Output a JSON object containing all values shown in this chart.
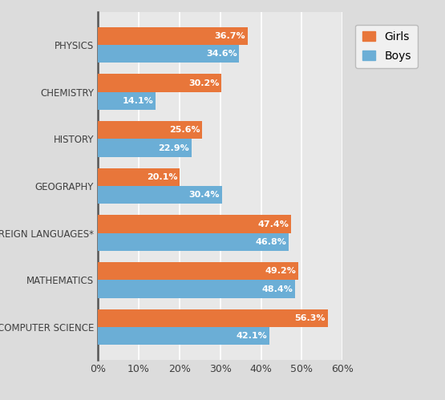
{
  "categories": [
    "COMPUTER SCIENCE",
    "MATHEMATICS",
    "FOREIGN LANGUAGES*",
    "GEOGRAPHY",
    "HISTORY",
    "CHEMISTRY",
    "PHYSICS"
  ],
  "girls": [
    56.3,
    49.2,
    47.4,
    20.1,
    25.6,
    30.2,
    36.7
  ],
  "boys": [
    42.1,
    48.4,
    46.8,
    30.4,
    22.9,
    14.1,
    34.6
  ],
  "girls_color": "#E8763A",
  "boys_color": "#6BAED6",
  "bar_height": 0.38,
  "xlim": [
    0,
    60
  ],
  "xticks": [
    0,
    10,
    20,
    30,
    40,
    50,
    60
  ],
  "xtick_labels": [
    "0%",
    "10%",
    "20%",
    "30%",
    "40%",
    "50%",
    "60%"
  ],
  "label_fontsize": 8.5,
  "tick_fontsize": 9,
  "legend_labels": [
    "Girls",
    "Boys"
  ],
  "background_color": "#DCDCDC",
  "plot_bg_color": "#E8E8E8",
  "grid_color": "#FFFFFF",
  "value_fontsize": 8
}
